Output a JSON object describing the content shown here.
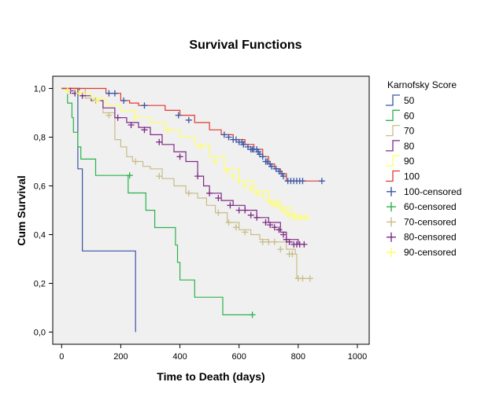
{
  "chart_data": {
    "type": "line",
    "title": "Survival Functions",
    "xlabel": "Time to Death (days)",
    "ylabel": "Cum Survival",
    "xlim": [
      -30,
      1040
    ],
    "ylim": [
      -0.05,
      1.05
    ],
    "x_ticks": [
      0,
      200,
      400,
      600,
      800,
      1000
    ],
    "x_tick_labels": [
      "0",
      "200",
      "400",
      "600",
      "800",
      "1000"
    ],
    "y_ticks": [
      0.0,
      0.2,
      0.4,
      0.6,
      0.8,
      1.0
    ],
    "y_tick_labels": [
      "0,0",
      "0,2",
      "0,4",
      "0,6",
      "0,8",
      "1,0"
    ],
    "grid": false,
    "legend_title": "Karnofsky Score",
    "legend_position": "right",
    "series": [
      {
        "name": "50",
        "color": "#3A53A4",
        "line": "step",
        "points": [
          [
            0,
            1.0
          ],
          [
            55,
            1.0
          ],
          [
            55,
            0.67
          ],
          [
            70,
            0.67
          ],
          [
            70,
            0.333
          ],
          [
            250,
            0.333
          ],
          [
            250,
            0.0
          ]
        ]
      },
      {
        "name": "60",
        "color": "#2BB24C",
        "line": "step",
        "points": [
          [
            0,
            1.0
          ],
          [
            20,
            1.0
          ],
          [
            20,
            0.94
          ],
          [
            35,
            0.94
          ],
          [
            35,
            0.88
          ],
          [
            40,
            0.88
          ],
          [
            40,
            0.82
          ],
          [
            55,
            0.82
          ],
          [
            55,
            0.76
          ],
          [
            65,
            0.76
          ],
          [
            65,
            0.71
          ],
          [
            115,
            0.71
          ],
          [
            115,
            0.643
          ],
          [
            225,
            0.643
          ],
          [
            225,
            0.571
          ],
          [
            285,
            0.571
          ],
          [
            285,
            0.5
          ],
          [
            315,
            0.5
          ],
          [
            315,
            0.429
          ],
          [
            385,
            0.429
          ],
          [
            385,
            0.357
          ],
          [
            392,
            0.357
          ],
          [
            392,
            0.286
          ],
          [
            400,
            0.286
          ],
          [
            400,
            0.214
          ],
          [
            450,
            0.214
          ],
          [
            450,
            0.143
          ],
          [
            545,
            0.143
          ],
          [
            545,
            0.071
          ],
          [
            645,
            0.071
          ]
        ]
      },
      {
        "name": "70",
        "color": "#C8BC87",
        "line": "step",
        "points": [
          [
            0,
            1.0
          ],
          [
            80,
            0.96
          ],
          [
            110,
            0.95
          ],
          [
            140,
            0.9
          ],
          [
            180,
            0.79
          ],
          [
            200,
            0.76
          ],
          [
            220,
            0.72
          ],
          [
            240,
            0.7
          ],
          [
            275,
            0.68
          ],
          [
            300,
            0.67
          ],
          [
            340,
            0.63
          ],
          [
            380,
            0.6
          ],
          [
            420,
            0.57
          ],
          [
            460,
            0.55
          ],
          [
            490,
            0.52
          ],
          [
            520,
            0.49
          ],
          [
            560,
            0.45
          ],
          [
            600,
            0.42
          ],
          [
            640,
            0.4
          ],
          [
            670,
            0.38
          ],
          [
            700,
            0.37
          ],
          [
            730,
            0.37
          ],
          [
            760,
            0.34
          ],
          [
            790,
            0.32
          ],
          [
            795,
            0.22
          ],
          [
            840,
            0.22
          ]
        ]
      },
      {
        "name": "80",
        "color": "#7D2A85",
        "line": "step",
        "points": [
          [
            0,
            1.0
          ],
          [
            60,
            0.97
          ],
          [
            100,
            0.95
          ],
          [
            140,
            0.92
          ],
          [
            180,
            0.88
          ],
          [
            220,
            0.86
          ],
          [
            260,
            0.84
          ],
          [
            300,
            0.81
          ],
          [
            340,
            0.77
          ],
          [
            380,
            0.74
          ],
          [
            420,
            0.7
          ],
          [
            460,
            0.64
          ],
          [
            480,
            0.6
          ],
          [
            500,
            0.57
          ],
          [
            540,
            0.54
          ],
          [
            580,
            0.52
          ],
          [
            620,
            0.5
          ],
          [
            660,
            0.47
          ],
          [
            700,
            0.45
          ],
          [
            740,
            0.41
          ],
          [
            760,
            0.38
          ],
          [
            800,
            0.36
          ],
          [
            820,
            0.36
          ]
        ]
      },
      {
        "name": "90",
        "color": "#FFFF66",
        "line": "step",
        "points": [
          [
            0,
            1.0
          ],
          [
            50,
            0.98
          ],
          [
            100,
            0.96
          ],
          [
            150,
            0.93
          ],
          [
            200,
            0.91
          ],
          [
            250,
            0.88
          ],
          [
            300,
            0.86
          ],
          [
            350,
            0.83
          ],
          [
            400,
            0.8
          ],
          [
            450,
            0.77
          ],
          [
            500,
            0.72
          ],
          [
            550,
            0.67
          ],
          [
            600,
            0.62
          ],
          [
            650,
            0.58
          ],
          [
            700,
            0.54
          ],
          [
            740,
            0.51
          ],
          [
            780,
            0.48
          ],
          [
            800,
            0.47
          ],
          [
            830,
            0.47
          ]
        ]
      },
      {
        "name": "100",
        "color": "#E03A2E",
        "line": "step",
        "points": [
          [
            0,
            1.0
          ],
          [
            150,
            0.98
          ],
          [
            200,
            0.95
          ],
          [
            230,
            0.94
          ],
          [
            260,
            0.93
          ],
          [
            300,
            0.93
          ],
          [
            350,
            0.91
          ],
          [
            400,
            0.89
          ],
          [
            450,
            0.86
          ],
          [
            500,
            0.83
          ],
          [
            540,
            0.81
          ],
          [
            580,
            0.79
          ],
          [
            620,
            0.77
          ],
          [
            650,
            0.75
          ],
          [
            680,
            0.72
          ],
          [
            700,
            0.69
          ],
          [
            720,
            0.67
          ],
          [
            740,
            0.65
          ],
          [
            760,
            0.62
          ],
          [
            880,
            0.62
          ]
        ]
      }
    ],
    "censored_series": [
      {
        "name": "100-censored",
        "color": "#3A53A4",
        "points": [
          [
            160,
            0.98
          ],
          [
            180,
            0.98
          ],
          [
            210,
            0.95
          ],
          [
            280,
            0.93
          ],
          [
            395,
            0.89
          ],
          [
            430,
            0.87
          ],
          [
            550,
            0.81
          ],
          [
            565,
            0.8
          ],
          [
            580,
            0.79
          ],
          [
            590,
            0.79
          ],
          [
            600,
            0.78
          ],
          [
            610,
            0.78
          ],
          [
            615,
            0.77
          ],
          [
            630,
            0.76
          ],
          [
            640,
            0.75
          ],
          [
            645,
            0.75
          ],
          [
            650,
            0.75
          ],
          [
            660,
            0.75
          ],
          [
            665,
            0.74
          ],
          [
            670,
            0.73
          ],
          [
            680,
            0.72
          ],
          [
            690,
            0.7
          ],
          [
            695,
            0.7
          ],
          [
            705,
            0.69
          ],
          [
            710,
            0.68
          ],
          [
            725,
            0.67
          ],
          [
            735,
            0.66
          ],
          [
            745,
            0.65
          ],
          [
            750,
            0.64
          ],
          [
            765,
            0.62
          ],
          [
            775,
            0.62
          ],
          [
            785,
            0.62
          ],
          [
            795,
            0.62
          ],
          [
            805,
            0.62
          ],
          [
            815,
            0.62
          ],
          [
            880,
            0.62
          ]
        ]
      },
      {
        "name": "60-censored",
        "color": "#2BB24C",
        "points": [
          [
            230,
            0.643
          ],
          [
            645,
            0.071
          ]
        ]
      },
      {
        "name": "70-censored",
        "color": "#C8BC87",
        "points": [
          [
            115,
            0.95
          ],
          [
            160,
            0.89
          ],
          [
            250,
            0.7
          ],
          [
            330,
            0.64
          ],
          [
            430,
            0.57
          ],
          [
            530,
            0.49
          ],
          [
            565,
            0.45
          ],
          [
            590,
            0.43
          ],
          [
            620,
            0.41
          ],
          [
            680,
            0.37
          ],
          [
            700,
            0.37
          ],
          [
            720,
            0.37
          ],
          [
            740,
            0.34
          ],
          [
            770,
            0.32
          ],
          [
            780,
            0.32
          ],
          [
            800,
            0.22
          ],
          [
            815,
            0.22
          ],
          [
            840,
            0.22
          ]
        ]
      },
      {
        "name": "80-censored",
        "color": "#7D2A85",
        "points": [
          [
            30,
            0.99
          ],
          [
            45,
            0.98
          ],
          [
            70,
            0.97
          ],
          [
            190,
            0.88
          ],
          [
            235,
            0.85
          ],
          [
            280,
            0.83
          ],
          [
            330,
            0.78
          ],
          [
            400,
            0.72
          ],
          [
            460,
            0.64
          ],
          [
            500,
            0.57
          ],
          [
            530,
            0.55
          ],
          [
            570,
            0.52
          ],
          [
            600,
            0.5
          ],
          [
            620,
            0.5
          ],
          [
            640,
            0.48
          ],
          [
            660,
            0.47
          ],
          [
            690,
            0.45
          ],
          [
            705,
            0.44
          ],
          [
            720,
            0.43
          ],
          [
            735,
            0.42
          ],
          [
            750,
            0.4
          ],
          [
            760,
            0.38
          ],
          [
            770,
            0.37
          ],
          [
            785,
            0.36
          ],
          [
            795,
            0.36
          ],
          [
            805,
            0.36
          ],
          [
            820,
            0.36
          ]
        ]
      },
      {
        "name": "90-censored",
        "color": "#FFFF66",
        "points": [
          [
            20,
            0.99
          ],
          [
            60,
            0.98
          ],
          [
            120,
            0.95
          ],
          [
            250,
            0.88
          ],
          [
            360,
            0.83
          ],
          [
            470,
            0.76
          ],
          [
            520,
            0.7
          ],
          [
            560,
            0.66
          ],
          [
            580,
            0.64
          ],
          [
            600,
            0.62
          ],
          [
            620,
            0.6
          ],
          [
            640,
            0.59
          ],
          [
            660,
            0.57
          ],
          [
            680,
            0.56
          ],
          [
            700,
            0.54
          ],
          [
            710,
            0.53
          ],
          [
            720,
            0.52
          ],
          [
            730,
            0.52
          ],
          [
            740,
            0.51
          ],
          [
            750,
            0.5
          ],
          [
            760,
            0.49
          ],
          [
            770,
            0.48
          ],
          [
            780,
            0.48
          ],
          [
            790,
            0.47
          ],
          [
            800,
            0.47
          ],
          [
            810,
            0.47
          ],
          [
            820,
            0.47
          ],
          [
            830,
            0.47
          ]
        ]
      }
    ]
  }
}
